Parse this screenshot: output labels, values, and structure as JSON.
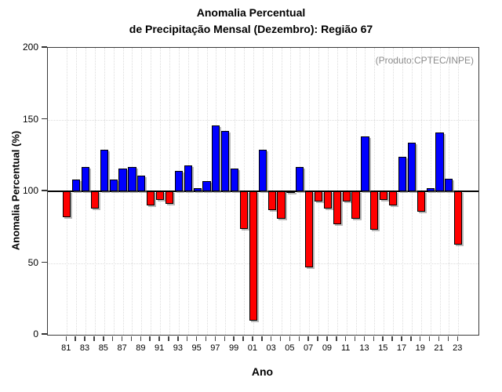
{
  "title": {
    "line1": "Anomalia Percentual",
    "line2": "de Precipitação Mensal (Dezembro): Região 67"
  },
  "annotation": "(Produto:CPTEC/INPE)",
  "colors": {
    "positive_bar": "#0000ff",
    "negative_bar": "#ff0000",
    "baseline": "#000000",
    "frame": "#3a3a3a",
    "grid": "#dcdcdc",
    "annotation_text": "#8c8c8c"
  },
  "chart_data": {
    "type": "bar",
    "title": "Anomalia Percentual de Precipitação Mensal (Dezembro): Região 67",
    "xlabel": "Ano",
    "ylabel": "Anomalia Percentual (%)",
    "baseline": 100,
    "ylim": [
      0,
      200
    ],
    "yticks": [
      "0",
      "50",
      "100",
      "150",
      "200"
    ],
    "grid": "dotted",
    "legend": "none",
    "categories": [
      "81",
      "82",
      "83",
      "84",
      "85",
      "86",
      "87",
      "88",
      "89",
      "90",
      "91",
      "92",
      "93",
      "94",
      "95",
      "96",
      "97",
      "98",
      "99",
      "00",
      "01",
      "02",
      "03",
      "04",
      "05",
      "06",
      "07",
      "08",
      "09",
      "10",
      "11",
      "12",
      "13",
      "14",
      "15",
      "16",
      "17",
      "18",
      "19",
      "20",
      "21",
      "22",
      "23"
    ],
    "x_tick_labels_shown": [
      "81",
      "83",
      "85",
      "87",
      "89",
      "91",
      "93",
      "95",
      "97",
      "99",
      "01",
      "03",
      "05",
      "07",
      "09",
      "11",
      "13",
      "15",
      "17",
      "19",
      "21",
      "23"
    ],
    "values": [
      82,
      108,
      117,
      88,
      129,
      108,
      116,
      117,
      111,
      90,
      94,
      91,
      114,
      118,
      102,
      107,
      146,
      142,
      116,
      74,
      10,
      129,
      87,
      81,
      99,
      117,
      47,
      93,
      88,
      77,
      93,
      81,
      138,
      73,
      94,
      90,
      124,
      134,
      86,
      102,
      141,
      109,
      63
    ],
    "color_rule": "value >= 100 blue, value < 100 red"
  }
}
